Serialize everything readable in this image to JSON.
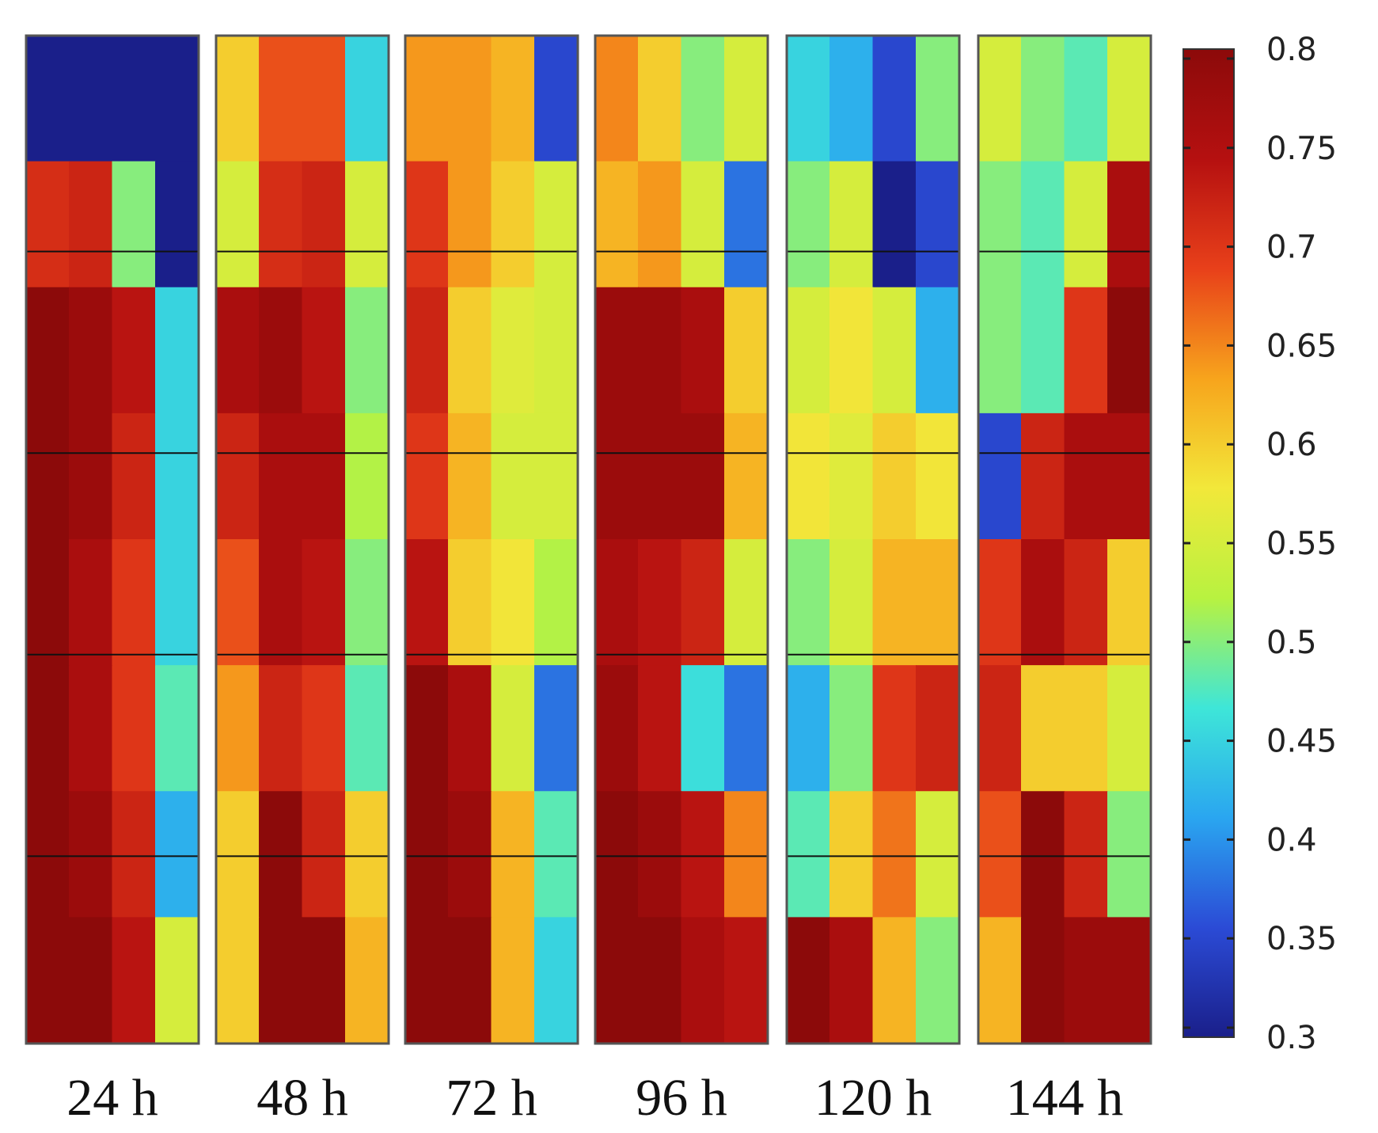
{
  "chart_data": {
    "type": "heatmap",
    "panels": [
      {
        "label": "24 h",
        "field": [
          [
            0.3,
            0.3,
            0.3,
            0.3
          ],
          [
            0.71,
            0.72,
            0.5,
            0.3
          ],
          [
            0.8,
            0.78,
            0.74,
            0.45
          ],
          [
            0.8,
            0.78,
            0.72,
            0.45
          ],
          [
            0.8,
            0.76,
            0.7,
            0.45
          ],
          [
            0.8,
            0.76,
            0.7,
            0.48
          ],
          [
            0.8,
            0.78,
            0.72,
            0.42
          ],
          [
            0.8,
            0.8,
            0.74,
            0.55
          ]
        ]
      },
      {
        "label": "48 h",
        "field": [
          [
            0.6,
            0.68,
            0.68,
            0.45
          ],
          [
            0.55,
            0.71,
            0.72,
            0.55
          ],
          [
            0.76,
            0.78,
            0.74,
            0.5
          ],
          [
            0.72,
            0.76,
            0.76,
            0.52
          ],
          [
            0.68,
            0.76,
            0.74,
            0.5
          ],
          [
            0.64,
            0.72,
            0.7,
            0.48
          ],
          [
            0.6,
            0.8,
            0.72,
            0.6
          ],
          [
            0.6,
            0.8,
            0.8,
            0.62
          ]
        ]
      },
      {
        "label": "72 h",
        "field": [
          [
            0.64,
            0.64,
            0.62,
            0.35
          ],
          [
            0.7,
            0.64,
            0.6,
            0.55
          ],
          [
            0.72,
            0.6,
            0.56,
            0.55
          ],
          [
            0.7,
            0.62,
            0.55,
            0.55
          ],
          [
            0.74,
            0.6,
            0.58,
            0.52
          ],
          [
            0.8,
            0.76,
            0.55,
            0.38
          ],
          [
            0.8,
            0.78,
            0.62,
            0.48
          ],
          [
            0.8,
            0.8,
            0.62,
            0.45
          ]
        ]
      },
      {
        "label": "96 h",
        "field": [
          [
            0.65,
            0.6,
            0.5,
            0.55
          ],
          [
            0.62,
            0.64,
            0.55,
            0.38
          ],
          [
            0.78,
            0.78,
            0.76,
            0.6
          ],
          [
            0.78,
            0.78,
            0.78,
            0.62
          ],
          [
            0.76,
            0.74,
            0.72,
            0.55
          ],
          [
            0.78,
            0.74,
            0.46,
            0.38
          ],
          [
            0.8,
            0.78,
            0.74,
            0.65
          ],
          [
            0.8,
            0.8,
            0.76,
            0.74
          ]
        ]
      },
      {
        "label": "120 h",
        "field": [
          [
            0.45,
            0.42,
            0.35,
            0.5
          ],
          [
            0.5,
            0.55,
            0.3,
            0.35
          ],
          [
            0.55,
            0.58,
            0.55,
            0.42
          ],
          [
            0.58,
            0.56,
            0.6,
            0.58
          ],
          [
            0.5,
            0.55,
            0.62,
            0.62
          ],
          [
            0.42,
            0.5,
            0.7,
            0.72
          ],
          [
            0.48,
            0.6,
            0.66,
            0.55
          ],
          [
            0.8,
            0.76,
            0.62,
            0.5
          ]
        ]
      },
      {
        "label": "144 h",
        "field": [
          [
            0.55,
            0.5,
            0.48,
            0.55
          ],
          [
            0.5,
            0.48,
            0.55,
            0.76
          ],
          [
            0.5,
            0.48,
            0.7,
            0.8
          ],
          [
            0.35,
            0.72,
            0.76,
            0.76
          ],
          [
            0.7,
            0.76,
            0.72,
            0.6
          ],
          [
            0.72,
            0.6,
            0.6,
            0.55
          ],
          [
            0.68,
            0.8,
            0.72,
            0.5
          ],
          [
            0.62,
            0.8,
            0.78,
            0.78
          ]
        ]
      }
    ],
    "colorbar": {
      "min": 0.3,
      "max": 0.8,
      "ticks": [
        "0.8",
        "0.75",
        "0.7",
        "0.65",
        "0.6",
        "0.55",
        "0.5",
        "0.45",
        "0.4",
        "0.35",
        "0.3"
      ]
    },
    "colormap": [
      "#1a1f8a",
      "#2b4bd6",
      "#2aa6f0",
      "#3ee6d8",
      "#b8f240",
      "#f2e83a",
      "#f7a41c",
      "#e8401a",
      "#b51010",
      "#8c0a0a"
    ],
    "grid": true,
    "grid_rows": 5
  }
}
